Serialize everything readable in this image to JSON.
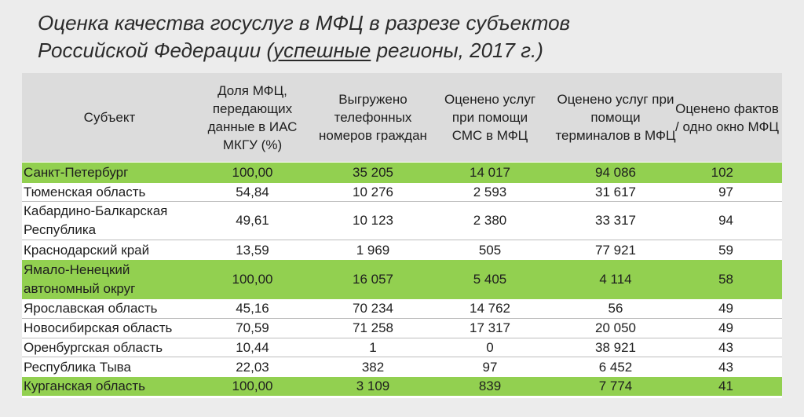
{
  "title": {
    "line1": "Оценка качества госуслуг в МФЦ в разрезе субъектов",
    "line2_before": "Российской Федерации (",
    "line2_underlined": "успешные",
    "line2_after": " регионы, 2017 г.)"
  },
  "table": {
    "headers": [
      "Субъект",
      "Доля МФЦ, передающих данные в ИАС МКГУ (%)",
      "Выгружено телефонных номеров граждан",
      "Оценено услуг при помощи СМС в МФЦ",
      "Оценено услуг при помощи терминалов в МФЦ",
      "Оценено фактов / одно окно МФЦ"
    ],
    "rows": [
      {
        "name": "Санкт-Петербург",
        "share": "100,00",
        "phones": "35 205",
        "sms": "14 017",
        "terminals": "94 086",
        "per_window": "102",
        "highlight": true
      },
      {
        "name": "Тюменская область",
        "share": "54,84",
        "phones": "10 276",
        "sms": "2 593",
        "terminals": "31 617",
        "per_window": "97",
        "highlight": false
      },
      {
        "name": "Кабардино-Балкарская Республика",
        "share": "49,61",
        "phones": "10 123",
        "sms": "2 380",
        "terminals": "33 317",
        "per_window": "94",
        "highlight": false
      },
      {
        "name": "Краснодарский край",
        "share": "13,59",
        "phones": "1 969",
        "sms": "505",
        "terminals": "77 921",
        "per_window": "59",
        "highlight": false
      },
      {
        "name": "Ямало-Ненецкий автономный округ",
        "share": "100,00",
        "phones": "16 057",
        "sms": "5 405",
        "terminals": "4 114",
        "per_window": "58",
        "highlight": true
      },
      {
        "name": "Ярославская область",
        "share": "45,16",
        "phones": "70 234",
        "sms": "14 762",
        "terminals": "56",
        "per_window": "49",
        "highlight": false
      },
      {
        "name": "Новосибирская область",
        "share": "70,59",
        "phones": "71 258",
        "sms": "17 317",
        "terminals": "20 050",
        "per_window": "49",
        "highlight": false
      },
      {
        "name": "Оренбургская область",
        "share": "10,44",
        "phones": "1",
        "sms": "0",
        "terminals": "38 921",
        "per_window": "43",
        "highlight": false
      },
      {
        "name": "Республика Тыва",
        "share": "22,03",
        "phones": "382",
        "sms": "97",
        "terminals": "6 452",
        "per_window": "43",
        "highlight": false
      },
      {
        "name": "Курганская область",
        "share": "100,00",
        "phones": "3 109",
        "sms": "839",
        "terminals": "7 774",
        "per_window": "41",
        "highlight": true
      }
    ]
  },
  "colors": {
    "highlight": "#92d050",
    "header_bg": "#dcdcdc",
    "page_bg": "#ececec"
  }
}
